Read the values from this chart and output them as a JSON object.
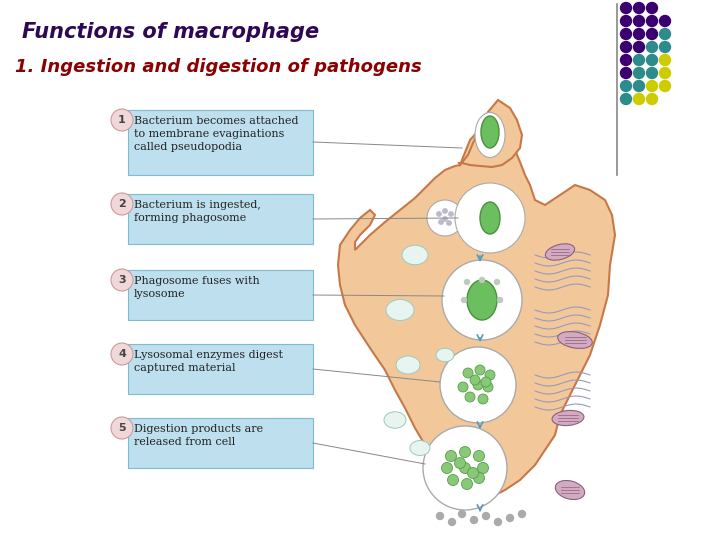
{
  "title": "Functions of macrophage",
  "subtitle": "1. Ingestion and digestion of pathogens",
  "title_color": "#2E0854",
  "subtitle_color": "#8B0000",
  "background_color": "#ffffff",
  "steps": [
    {
      "num": "1",
      "text": "Bacterium becomes attached\nto membrane evaginations\ncalled pseudopodia"
    },
    {
      "num": "2",
      "text": "Bacterium is ingested,\nforming phagosome"
    },
    {
      "num": "3",
      "text": "Phagosome fuses with\nlysosome"
    },
    {
      "num": "4",
      "text": "Lysosomal enzymes digest\ncaptured material"
    },
    {
      "num": "5",
      "text": "Digestion products are\nreleased from cell"
    }
  ],
  "box_bg": "#BEE0EE",
  "box_edge": "#7BBBD4",
  "num_circle_color": "#F0D8D8",
  "num_circle_edge": "#CC9999",
  "cell_color": "#F2C89A",
  "cell_edge": "#C87848",
  "dot_colors": [
    "#3A006F",
    "#3A006F",
    "#2E8B8B",
    "#CCCC00",
    "#C8C8D8"
  ],
  "dot_rows": [
    [
      0,
      0,
      0
    ],
    [
      0,
      0,
      0,
      0
    ],
    [
      0,
      0,
      1,
      2
    ],
    [
      0,
      1,
      2,
      2
    ],
    [
      1,
      2,
      2,
      3
    ],
    [
      1,
      2,
      2,
      3
    ],
    [
      2,
      2,
      3,
      3
    ],
    [
      2,
      3,
      3
    ]
  ]
}
